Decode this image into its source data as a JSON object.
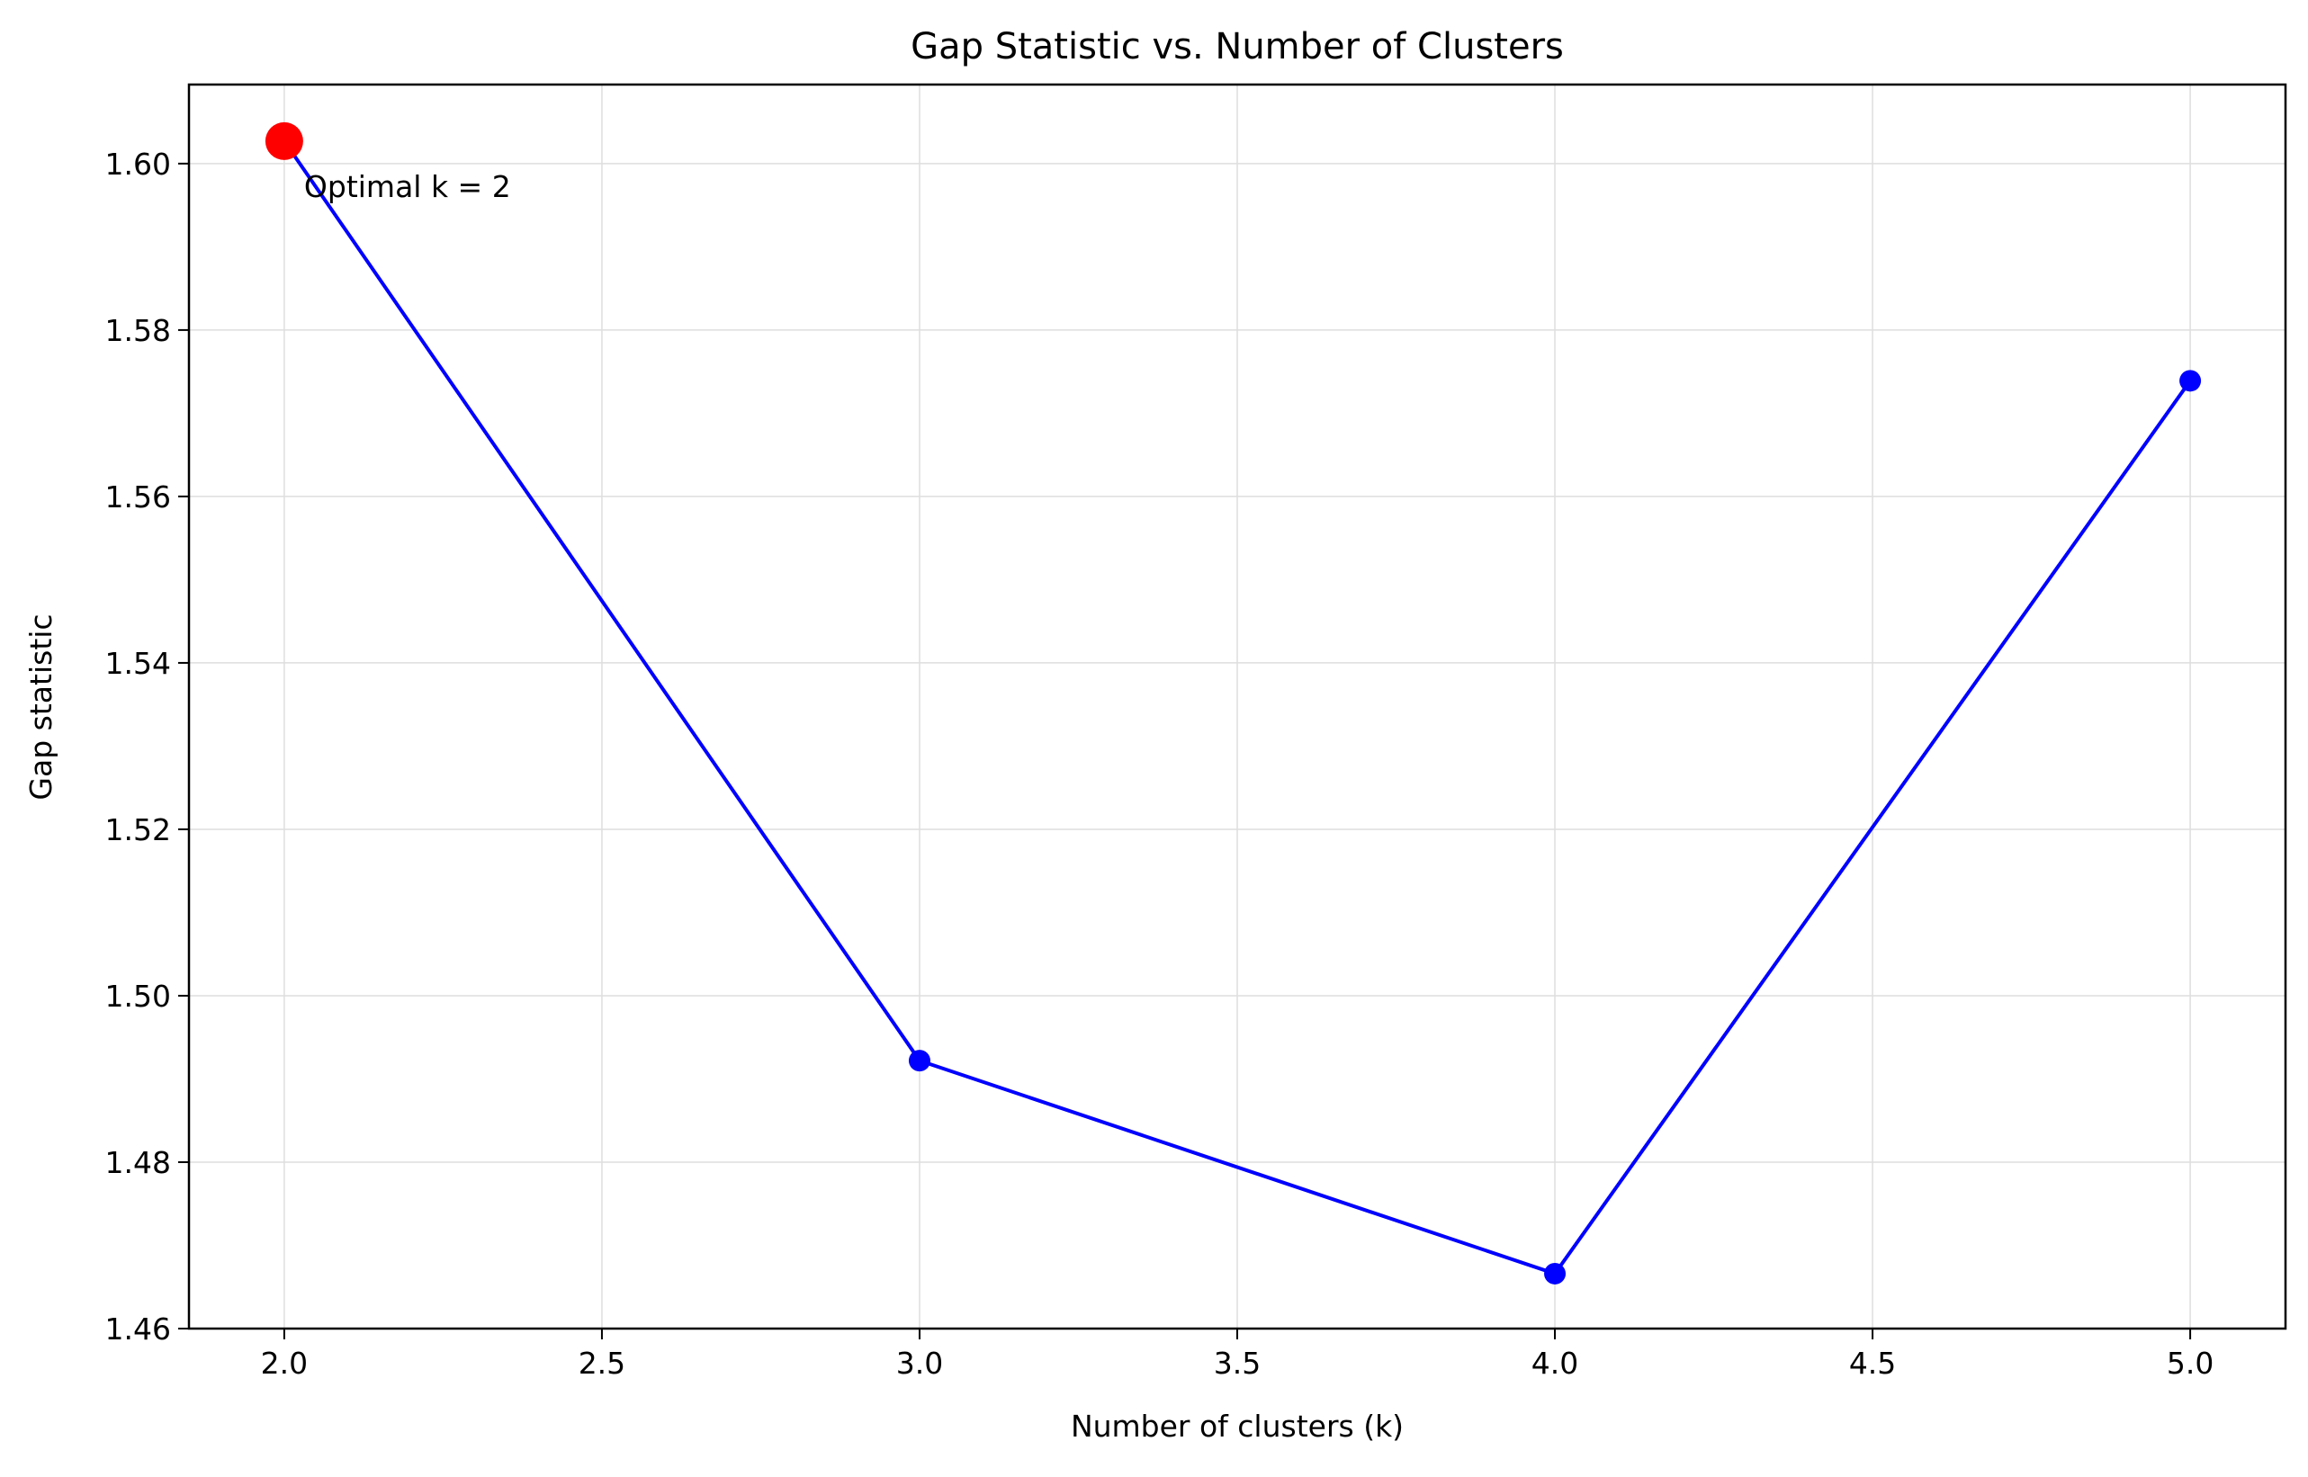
{
  "chart_data": {
    "type": "line",
    "title": "Gap Statistic vs. Number of Clusters",
    "xlabel": "Number of clusters (k)",
    "ylabel": "Gap statistic",
    "xlim": [
      1.85,
      5.15
    ],
    "ylim": [
      1.46,
      1.6095
    ],
    "xticks": [
      2.0,
      2.5,
      3.0,
      3.5,
      4.0,
      4.5,
      5.0
    ],
    "xtick_labels": [
      "2.0",
      "2.5",
      "3.0",
      "3.5",
      "4.0",
      "4.5",
      "5.0"
    ],
    "yticks": [
      1.46,
      1.48,
      1.5,
      1.52,
      1.54,
      1.56,
      1.58,
      1.6
    ],
    "ytick_labels": [
      "1.46",
      "1.48",
      "1.50",
      "1.52",
      "1.54",
      "1.56",
      "1.58",
      "1.60"
    ],
    "grid": true,
    "series": [
      {
        "x": [
          2,
          3,
          4,
          5
        ],
        "y": [
          1.6027,
          1.4922,
          1.4666,
          1.5739
        ],
        "color": "#0000ff",
        "marker": "circle"
      }
    ],
    "highlight": {
      "x": 2,
      "y": 1.6027,
      "color": "#ff0000"
    },
    "annotation": {
      "text": "Optimal k = 2",
      "x": 2,
      "y": 1.6027
    }
  }
}
